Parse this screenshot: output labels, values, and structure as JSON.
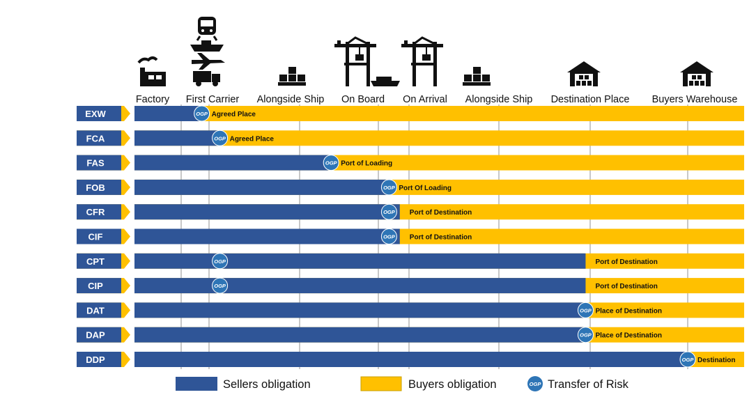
{
  "stages": [
    "Factory",
    "First Carrier",
    "Alongside Ship",
    "On Board",
    "On Arrival",
    "Alongside Ship",
    "Destination Place",
    "Buyers Warehouse"
  ],
  "stage_icons": [
    "factory-icon",
    "train-ship-plane-truck-icon",
    "cargo-boxes-icon",
    "crane-ship-icon",
    "crane-icon",
    "cargo-boxes-icon",
    "warehouse-icon",
    "warehouse-icon"
  ],
  "incoterms": [
    {
      "code": "EXW",
      "seller_end": 0.74,
      "risk_at": 0.74,
      "place": "Agreed Place"
    },
    {
      "code": "FCA",
      "seller_end": 1.12,
      "risk_at": 1.12,
      "place": "Agreed Place"
    },
    {
      "code": "FAS",
      "seller_end": 2.4,
      "risk_at": 2.4,
      "place": "Port of Loading"
    },
    {
      "code": "FOB",
      "seller_end": 3.35,
      "risk_at": 3.35,
      "place": "Port Of Loading"
    },
    {
      "code": "CFR",
      "seller_end": 3.7,
      "risk_at": 3.35,
      "place": "Port of Destination"
    },
    {
      "code": "CIF",
      "seller_end": 3.7,
      "risk_at": 3.35,
      "place": "Port of Destination"
    },
    {
      "code": "CPT",
      "seller_end": 5.95,
      "risk_at": 1.12,
      "place": "Port of Destination"
    },
    {
      "code": "CIP",
      "seller_end": 5.95,
      "risk_at": 1.12,
      "place": "Port of Destination"
    },
    {
      "code": "DAT",
      "seller_end": 5.95,
      "risk_at": 5.95,
      "place": "Place of Destination"
    },
    {
      "code": "DAP",
      "seller_end": 5.95,
      "risk_at": 5.95,
      "place": "Place of Destination"
    },
    {
      "code": "DDP",
      "seller_end": 7.35,
      "risk_at": 7.35,
      "place": "Destination"
    }
  ],
  "risk_badge_text": "OGP",
  "legend": {
    "sellers": "Sellers obligation",
    "buyers": "Buyers obligation",
    "risk": "Transfer of Risk"
  },
  "colors": {
    "seller": "#2f5597",
    "buyer": "#ffc000",
    "badge": "#2e75b6",
    "grid": "#c8c8c8"
  }
}
